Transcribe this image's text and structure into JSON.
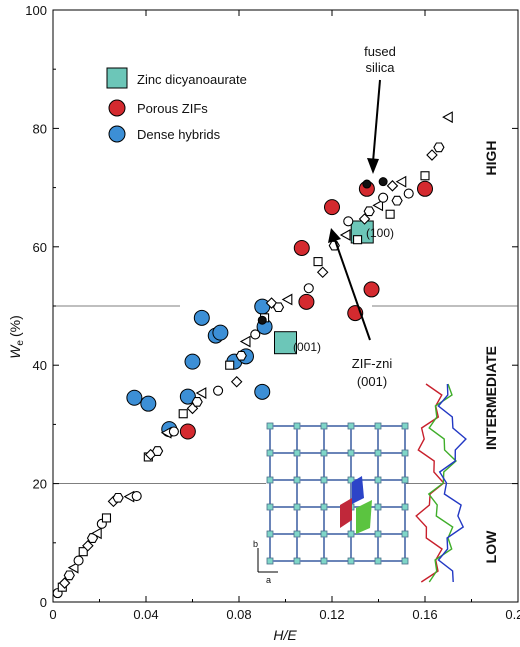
{
  "chart_data": {
    "type": "scatter",
    "xlabel": "H/E",
    "ylabel_main": "W",
    "ylabel_sub": "e",
    "ylabel_unit": "(%)",
    "xlim": [
      0,
      0.2
    ],
    "ylim": [
      0,
      100
    ],
    "x_ticks": [
      "0",
      "0.04",
      "0.08",
      "0.12",
      "0.16",
      "0.20"
    ],
    "x_tick_values": [
      0,
      0.04,
      0.08,
      0.12,
      0.16,
      0.2
    ],
    "y_ticks": [
      "0",
      "20",
      "40",
      "60",
      "80",
      "100"
    ],
    "y_tick_values": [
      0,
      20,
      40,
      60,
      80,
      100
    ],
    "grid": false,
    "legend_position": "top-left",
    "thresholds": [
      20,
      50
    ],
    "regions": [
      {
        "label": "HIGH",
        "y_center": 75
      },
      {
        "label": "INTERMEDIATE",
        "y_center": 35
      },
      {
        "label": "LOW",
        "y_center": 9
      }
    ],
    "series": [
      {
        "name": "Zinc dicyanoaurate",
        "marker": "square",
        "color": "#6cc6b8",
        "points": [
          [
            0.1,
            43.8
          ],
          [
            0.133,
            62.5
          ]
        ]
      },
      {
        "name": "Porous ZIFs",
        "marker": "circle",
        "color": "#d42a2f",
        "points": [
          [
            0.058,
            28.8
          ],
          [
            0.107,
            59.8
          ],
          [
            0.109,
            50.7
          ],
          [
            0.12,
            66.7
          ],
          [
            0.13,
            48.8
          ],
          [
            0.135,
            69.8
          ],
          [
            0.137,
            52.8
          ],
          [
            0.16,
            69.8
          ]
        ]
      },
      {
        "name": "Dense hybrids",
        "marker": "circle",
        "color": "#3c8fd6",
        "points": [
          [
            0.035,
            34.5
          ],
          [
            0.041,
            33.5
          ],
          [
            0.05,
            29.2
          ],
          [
            0.058,
            34.7
          ],
          [
            0.06,
            40.6
          ],
          [
            0.064,
            48.0
          ],
          [
            0.07,
            45.0
          ],
          [
            0.072,
            45.5
          ],
          [
            0.078,
            40.6
          ],
          [
            0.083,
            41.5
          ],
          [
            0.09,
            35.5
          ],
          [
            0.09,
            49.9
          ],
          [
            0.091,
            46.5
          ]
        ]
      },
      {
        "marker": "open-mixed",
        "color": "#000000",
        "points": [
          [
            0.002,
            1.5
          ],
          [
            0.004,
            2.5
          ],
          [
            0.005,
            3.2
          ],
          [
            0.007,
            4.5
          ],
          [
            0.009,
            5.8
          ],
          [
            0.011,
            7.0
          ],
          [
            0.013,
            8.5
          ],
          [
            0.015,
            9.5
          ],
          [
            0.017,
            10.8
          ],
          [
            0.019,
            11.6
          ],
          [
            0.021,
            13.2
          ],
          [
            0.023,
            14.2
          ],
          [
            0.026,
            17.0
          ],
          [
            0.028,
            17.6
          ],
          [
            0.033,
            17.8
          ],
          [
            0.036,
            17.9
          ],
          [
            0.041,
            24.5
          ],
          [
            0.042,
            24.9
          ],
          [
            0.045,
            25.5
          ],
          [
            0.049,
            28.6
          ],
          [
            0.052,
            28.8
          ],
          [
            0.056,
            31.8
          ],
          [
            0.06,
            32.7
          ],
          [
            0.062,
            33.8
          ],
          [
            0.064,
            35.3
          ],
          [
            0.071,
            35.7
          ],
          [
            0.076,
            40.0
          ],
          [
            0.079,
            37.2
          ],
          [
            0.081,
            41.6
          ],
          [
            0.083,
            44.0
          ],
          [
            0.087,
            45.2
          ],
          [
            0.091,
            48.0
          ],
          [
            0.094,
            50.5
          ],
          [
            0.097,
            49.8
          ],
          [
            0.101,
            51.1
          ],
          [
            0.11,
            53.0
          ],
          [
            0.114,
            57.5
          ],
          [
            0.116,
            55.7
          ],
          [
            0.121,
            60.2
          ],
          [
            0.126,
            62.0
          ],
          [
            0.127,
            64.3
          ],
          [
            0.131,
            61.2
          ],
          [
            0.134,
            64.7
          ],
          [
            0.136,
            66.0
          ],
          [
            0.14,
            67.0
          ],
          [
            0.142,
            68.3
          ],
          [
            0.145,
            65.5
          ],
          [
            0.146,
            70.3
          ],
          [
            0.148,
            67.8
          ],
          [
            0.15,
            71.0
          ],
          [
            0.153,
            69.0
          ],
          [
            0.16,
            72.0
          ],
          [
            0.163,
            75.5
          ],
          [
            0.166,
            76.8
          ],
          [
            0.17,
            81.9
          ]
        ]
      },
      {
        "marker": "filled-small",
        "color": "#000000",
        "points": [
          [
            0.09,
            47.6
          ],
          [
            0.135,
            70.6
          ],
          [
            0.142,
            71.0
          ]
        ]
      }
    ],
    "annotations": [
      {
        "text": "fused",
        "text2": "silica",
        "arrow_to": [
          0.14,
          72.2
        ]
      },
      {
        "text": "(100)",
        "near": [
          0.133,
          62.5
        ]
      },
      {
        "text": "(001)",
        "near": [
          0.1,
          43.8
        ]
      },
      {
        "text": "ZIF-zni",
        "text2": "(001)",
        "arrow_to": [
          0.12,
          61.5
        ]
      }
    ],
    "inset": {
      "axis_labels": [
        "b",
        "a"
      ]
    }
  }
}
